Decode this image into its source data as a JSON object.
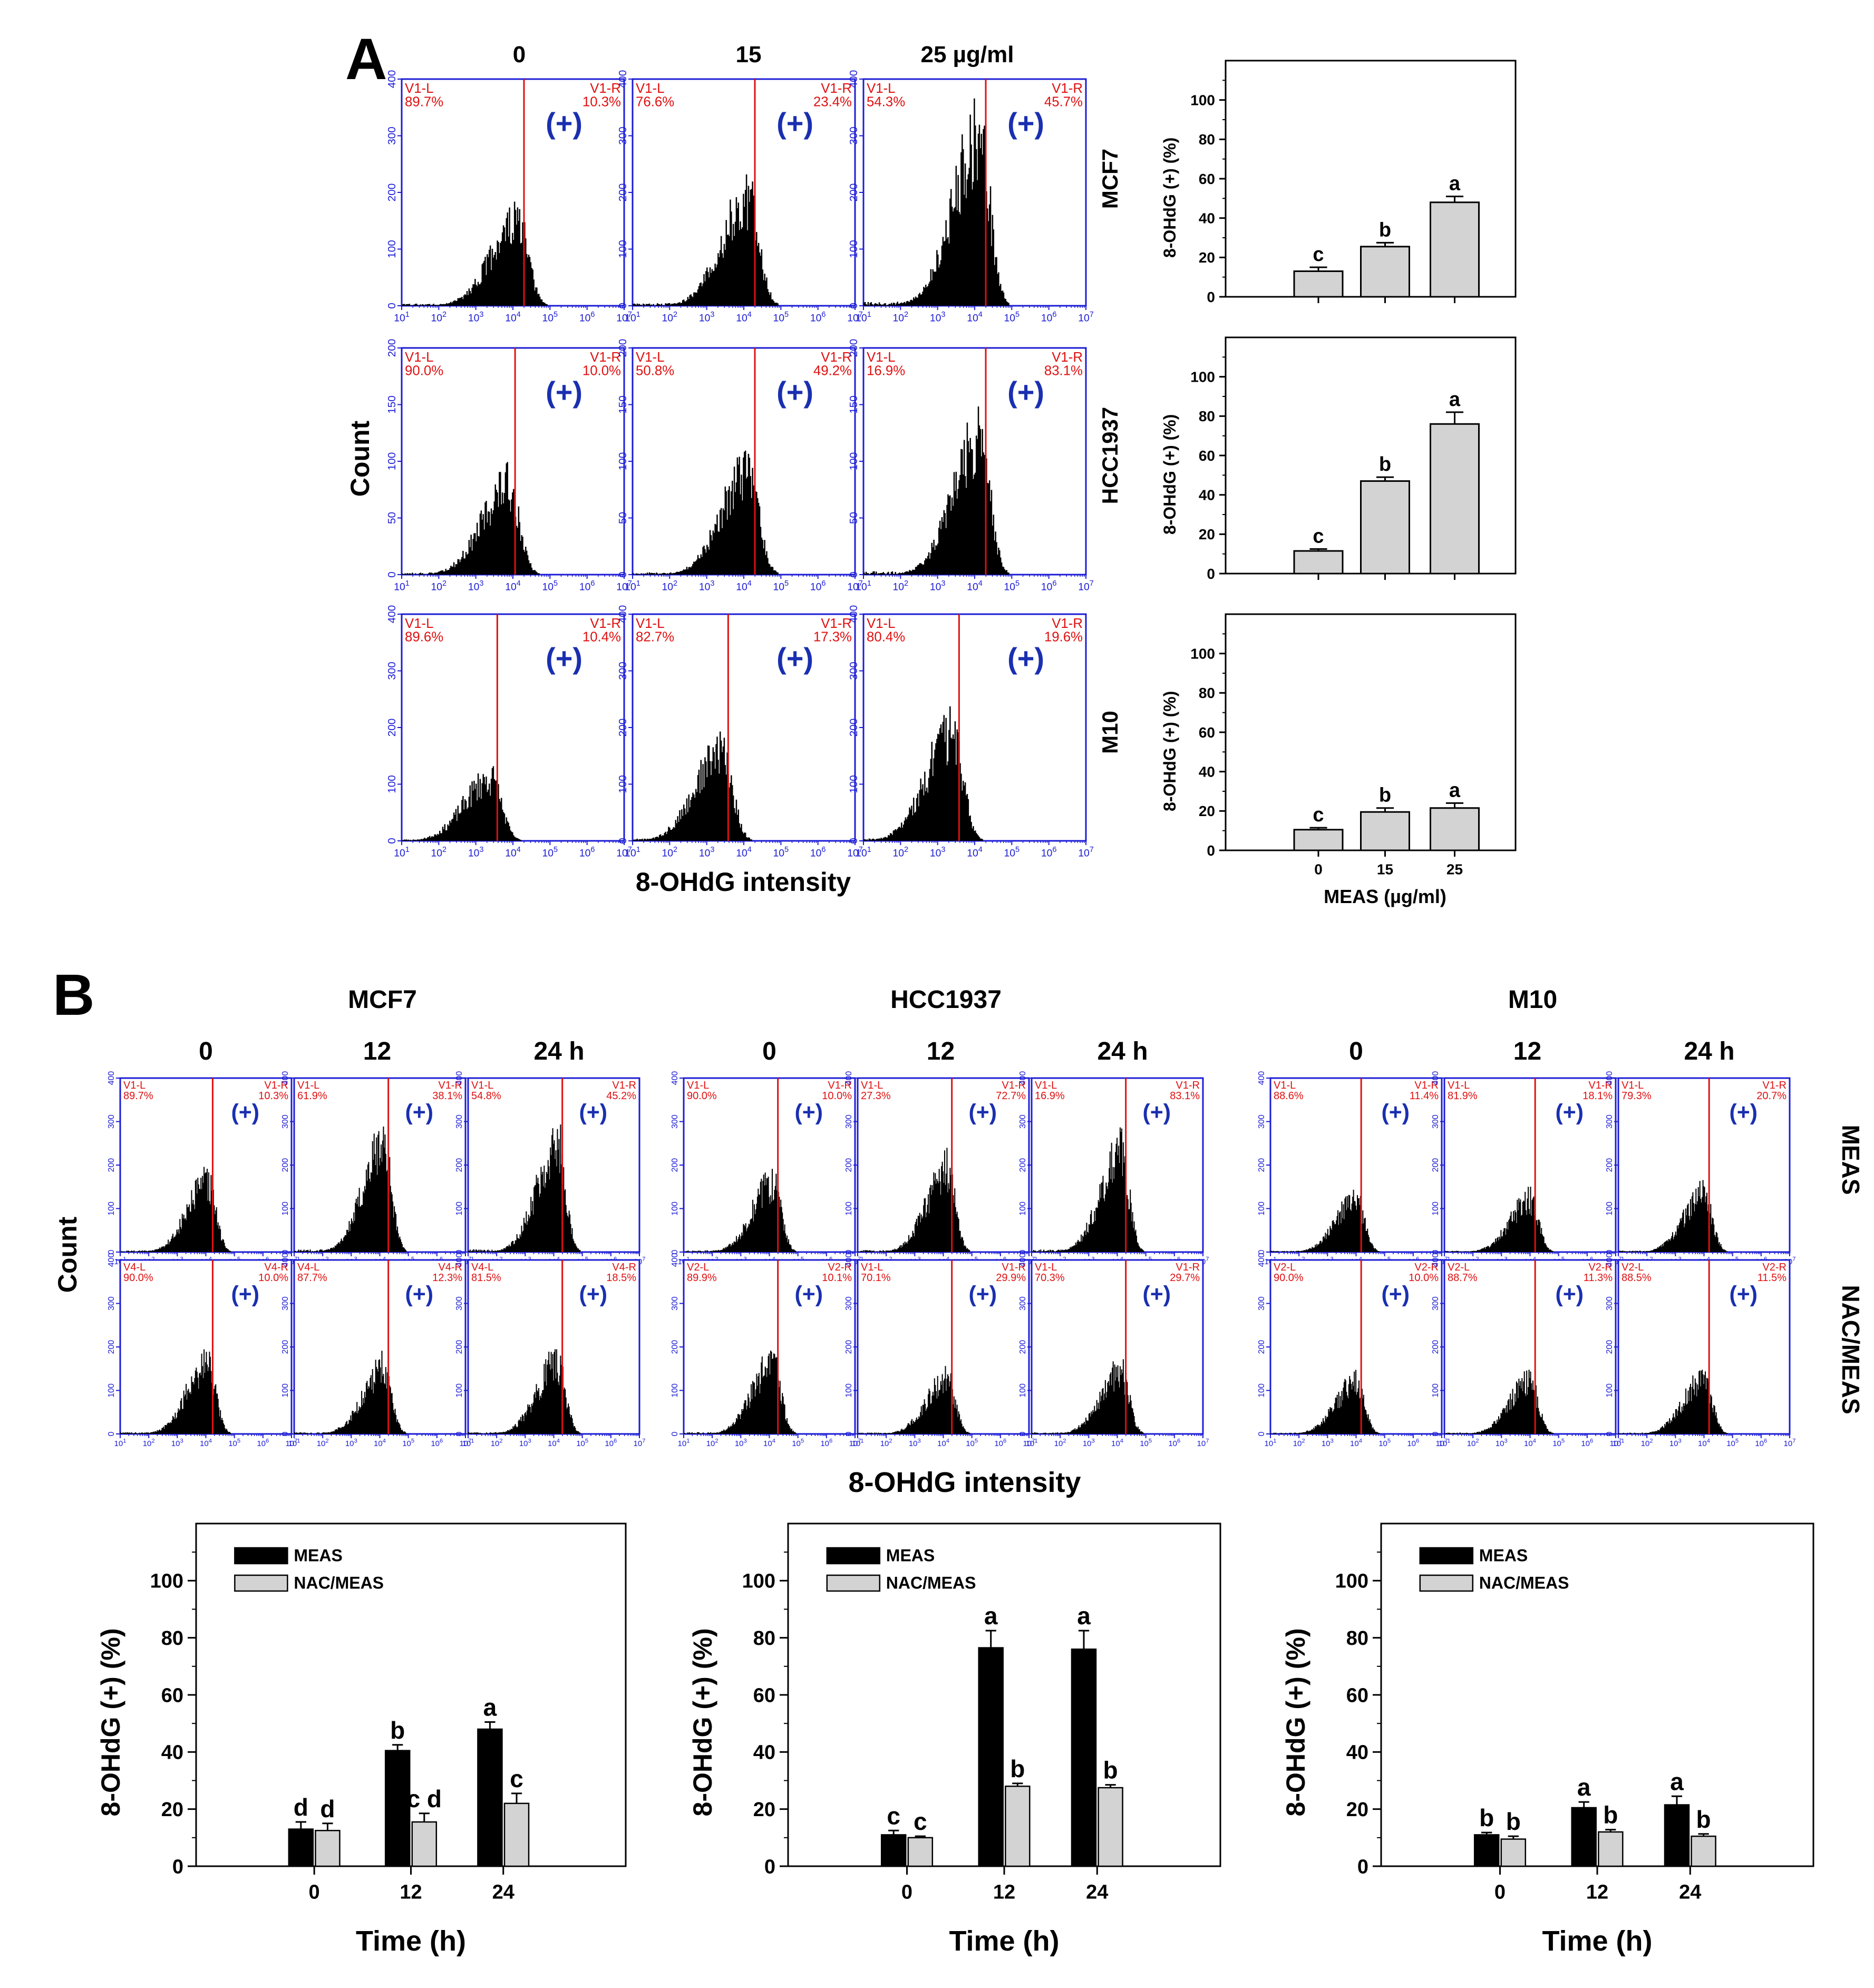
{
  "panel_a": {
    "letter": "A",
    "col_labels": [
      "0",
      "15",
      "25 µg/ml"
    ],
    "y_label": "Count",
    "x_label": "8-OHdG intensity",
    "rows": [
      {
        "cell": "MCF7",
        "ytick_max": "400",
        "yticks": [
          "0",
          "100",
          "200",
          "300",
          "400"
        ],
        "cells": [
          {
            "l_name": "V1-L",
            "l_val": "89.7%",
            "r_name": "V1-R",
            "r_val": "10.3%",
            "pos": "(+)"
          },
          {
            "l_name": "V1-L",
            "l_val": "76.6%",
            "r_name": "V1-R",
            "r_val": "23.4%",
            "pos": "(+)"
          },
          {
            "l_name": "V1-L",
            "l_val": "54.3%",
            "r_name": "V1-R",
            "r_val": "45.7%",
            "pos": "(+)"
          }
        ]
      },
      {
        "cell": "HCC1937",
        "ytick_max": "200",
        "yticks": [
          "0",
          "50",
          "100",
          "150",
          "200"
        ],
        "cells": [
          {
            "l_name": "V1-L",
            "l_val": "90.0%",
            "r_name": "V1-R",
            "r_val": "10.0%",
            "pos": "(+)"
          },
          {
            "l_name": "V1-L",
            "l_val": "50.8%",
            "r_name": "V1-R",
            "r_val": "49.2%",
            "pos": "(+)"
          },
          {
            "l_name": "V1-L",
            "l_val": "16.9%",
            "r_name": "V1-R",
            "r_val": "83.1%",
            "pos": "(+)"
          }
        ]
      },
      {
        "cell": "M10",
        "ytick_max": "400",
        "yticks": [
          "0",
          "100",
          "200",
          "300",
          "400"
        ],
        "cells": [
          {
            "l_name": "V1-L",
            "l_val": "89.6%",
            "r_name": "V1-R",
            "r_val": "10.4%",
            "pos": "(+)"
          },
          {
            "l_name": "V1-L",
            "l_val": "82.7%",
            "r_name": "V1-R",
            "r_val": "17.3%",
            "pos": "(+)"
          },
          {
            "l_name": "V1-L",
            "l_val": "80.4%",
            "r_name": "V1-R",
            "r_val": "19.6%",
            "pos": "(+)"
          }
        ]
      }
    ],
    "xticks": [
      "10^1",
      "10^2",
      "10^3",
      "10^4",
      "10^5",
      "10^6",
      "10^7"
    ]
  },
  "panel_b": {
    "letter": "B",
    "y_label": "Count",
    "x_label": "8-OHdG intensity",
    "row_labels": [
      "MEAS",
      "NAC/MEAS"
    ],
    "groups": [
      {
        "name": "MCF7",
        "times": [
          "0",
          "12",
          "24 h"
        ],
        "rows": [
          [
            {
              "l_name": "V1-L",
              "l_val": "89.7%",
              "r_name": "V1-R",
              "r_val": "10.3%",
              "pos": "(+)"
            },
            {
              "l_name": "V1-L",
              "l_val": "61.9%",
              "r_name": "V1-R",
              "r_val": "38.1%",
              "pos": "(+)"
            },
            {
              "l_name": "V1-L",
              "l_val": "54.8%",
              "r_name": "V1-R",
              "r_val": "45.2%",
              "pos": "(+)"
            }
          ],
          [
            {
              "l_name": "V4-L",
              "l_val": "90.0%",
              "r_name": "V4-R",
              "r_val": "10.0%",
              "pos": "(+)"
            },
            {
              "l_name": "V4-L",
              "l_val": "87.7%",
              "r_name": "V4-R",
              "r_val": "12.3%",
              "pos": "(+)"
            },
            {
              "l_name": "V4-L",
              "l_val": "81.5%",
              "r_name": "V4-R",
              "r_val": "18.5%",
              "pos": "(+)"
            }
          ]
        ]
      },
      {
        "name": "HCC1937",
        "times": [
          "0",
          "12",
          "24 h"
        ],
        "rows": [
          [
            {
              "l_name": "V1-L",
              "l_val": "90.0%",
              "r_name": "V1-R",
              "r_val": "10.0%",
              "pos": "(+)"
            },
            {
              "l_name": "V1-L",
              "l_val": "27.3%",
              "r_name": "V1-R",
              "r_val": "72.7%",
              "pos": "(+)"
            },
            {
              "l_name": "V1-L",
              "l_val": "16.9%",
              "r_name": "V1-R",
              "r_val": "83.1%",
              "pos": "(+)"
            }
          ],
          [
            {
              "l_name": "V2-L",
              "l_val": "89.9%",
              "r_name": "V2-R",
              "r_val": "10.1%",
              "pos": "(+)"
            },
            {
              "l_name": "V1-L",
              "l_val": "70.1%",
              "r_name": "V1-R",
              "r_val": "29.9%",
              "pos": "(+)"
            },
            {
              "l_name": "V1-L",
              "l_val": "70.3%",
              "r_name": "V1-R",
              "r_val": "29.7%",
              "pos": "(+)"
            }
          ]
        ]
      },
      {
        "name": "M10",
        "times": [
          "0",
          "12",
          "24 h"
        ],
        "rows": [
          [
            {
              "l_name": "V1-L",
              "l_val": "88.6%",
              "r_name": "V1-R",
              "r_val": "11.4%",
              "pos": "(+)"
            },
            {
              "l_name": "V1-L",
              "l_val": "81.9%",
              "r_name": "V1-R",
              "r_val": "18.1%",
              "pos": "(+)"
            },
            {
              "l_name": "V1-L",
              "l_val": "79.3%",
              "r_name": "V1-R",
              "r_val": "20.7%",
              "pos": "(+)"
            }
          ],
          [
            {
              "l_name": "V2-L",
              "l_val": "90.0%",
              "r_name": "V2-R",
              "r_val": "10.0%",
              "pos": "(+)"
            },
            {
              "l_name": "V2-L",
              "l_val": "88.7%",
              "r_name": "V2-R",
              "r_val": "11.3%",
              "pos": "(+)"
            },
            {
              "l_name": "V2-L",
              "l_val": "88.5%",
              "r_name": "V2-R",
              "r_val": "11.5%",
              "pos": "(+)"
            }
          ]
        ]
      }
    ],
    "yticks": [
      "0",
      "100",
      "200",
      "300",
      "400"
    ],
    "xticks": [
      "10^1",
      "10^2",
      "10^3",
      "10^4",
      "10^5",
      "10^6",
      "10^7"
    ]
  },
  "colors": {
    "frame": "#1c1cd6",
    "gate": "#e01010",
    "gate_text": "#e01010",
    "plus": "#1a2fb0",
    "hist": "#000000",
    "bar_gray": "#d3d3d3",
    "bar_black": "#000000"
  },
  "chart_data": [
    {
      "type": "bar",
      "panel": "A",
      "cell_line": "MCF7",
      "categories": [
        "0",
        "15",
        "25"
      ],
      "values": [
        13,
        25.5,
        48
      ],
      "errors": [
        2,
        2,
        3
      ],
      "letters": [
        "c",
        "b",
        "a"
      ],
      "ylabel": "8-OHdG (+) (%)",
      "row_label": "MCF7",
      "ylim": [
        0,
        120
      ],
      "yticks": [
        "0",
        "20",
        "40",
        "60",
        "80",
        "100"
      ]
    },
    {
      "type": "bar",
      "panel": "A",
      "cell_line": "HCC1937",
      "categories": [
        "0",
        "15",
        "25"
      ],
      "values": [
        11.5,
        47,
        76
      ],
      "errors": [
        1,
        2,
        6
      ],
      "letters": [
        "c",
        "b",
        "a"
      ],
      "ylabel": "8-OHdG (+) (%)",
      "row_label": "HCC1937",
      "ylim": [
        0,
        120
      ],
      "yticks": [
        "0",
        "20",
        "40",
        "60",
        "80",
        "100"
      ]
    },
    {
      "type": "bar",
      "panel": "A",
      "cell_line": "M10",
      "categories": [
        "0",
        "15",
        "25"
      ],
      "values": [
        10.5,
        19.5,
        21.5
      ],
      "errors": [
        1,
        2,
        2.5
      ],
      "letters": [
        "c",
        "b",
        "a"
      ],
      "ylabel": "8-OHdG (+) (%)",
      "row_label": "M10",
      "xlabel": "MEAS (µg/ml)",
      "ylim": [
        0,
        120
      ],
      "yticks": [
        "0",
        "20",
        "40",
        "60",
        "80",
        "100"
      ]
    },
    {
      "type": "bar",
      "panel": "B",
      "cell_line": "MCF7",
      "categories": [
        "0",
        "12",
        "24"
      ],
      "xlabel": "Time (h)",
      "ylabel": "8-OHdG (+) (%)",
      "ylim": [
        0,
        120
      ],
      "yticks": [
        "0",
        "20",
        "40",
        "60",
        "80",
        "100"
      ],
      "series": [
        {
          "name": "MEAS",
          "values": [
            13,
            40.5,
            48
          ],
          "errors": [
            2.5,
            2,
            2.5
          ],
          "letters": [
            "d",
            "b",
            "a"
          ]
        },
        {
          "name": "NAC/MEAS",
          "values": [
            12.5,
            15.5,
            22
          ],
          "errors": [
            2.5,
            3,
            3.5
          ],
          "letters": [
            "d",
            "c d",
            "c"
          ]
        }
      ]
    },
    {
      "type": "bar",
      "panel": "B",
      "cell_line": "HCC1937",
      "categories": [
        "0",
        "12",
        "24"
      ],
      "xlabel": "Time (h)",
      "ylabel": "8-OHdG (+) (%)",
      "ylim": [
        0,
        120
      ],
      "yticks": [
        "0",
        "20",
        "40",
        "60",
        "80",
        "100"
      ],
      "series": [
        {
          "name": "MEAS",
          "values": [
            11,
            76.5,
            76
          ],
          "errors": [
            1.5,
            6,
            6.5
          ],
          "letters": [
            "c",
            "a",
            "a"
          ]
        },
        {
          "name": "NAC/MEAS",
          "values": [
            10,
            28,
            27.5
          ],
          "errors": [
            0.5,
            1,
            1
          ],
          "letters": [
            "c",
            "b",
            "b"
          ]
        }
      ]
    },
    {
      "type": "bar",
      "panel": "B",
      "cell_line": "M10",
      "categories": [
        "0",
        "12",
        "24"
      ],
      "xlabel": "Time (h)",
      "ylabel": "8-OHdG (+) (%)",
      "ylim": [
        0,
        120
      ],
      "yticks": [
        "0",
        "20",
        "40",
        "60",
        "80",
        "100"
      ],
      "series": [
        {
          "name": "MEAS",
          "values": [
            11,
            20.5,
            21.5
          ],
          "errors": [
            0.8,
            2,
            3
          ],
          "letters": [
            "b",
            "a",
            "a"
          ]
        },
        {
          "name": "NAC/MEAS",
          "values": [
            9.5,
            12,
            10.5
          ],
          "errors": [
            1,
            0.8,
            0.8
          ],
          "letters": [
            "b",
            "b",
            "b"
          ]
        }
      ]
    }
  ]
}
